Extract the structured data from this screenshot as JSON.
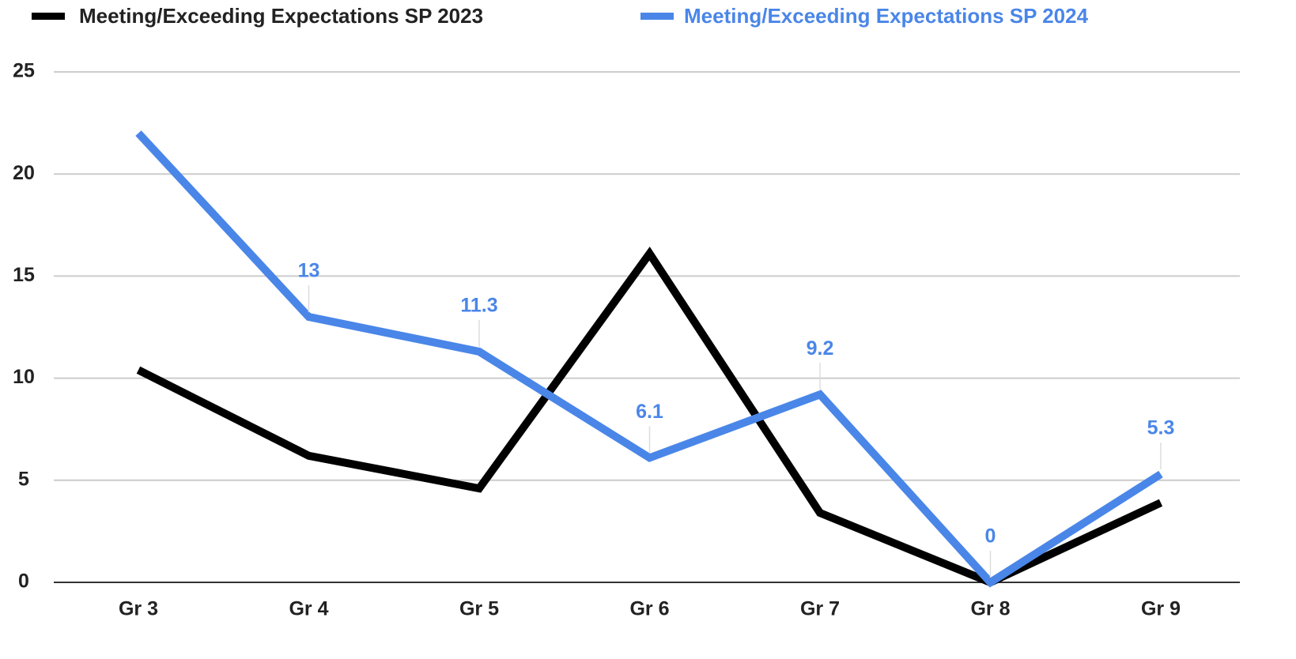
{
  "chart_data": {
    "type": "line",
    "categories": [
      "Gr 3",
      "Gr 4",
      "Gr 5",
      "Gr 6",
      "Gr 7",
      "Gr 8",
      "Gr 9"
    ],
    "series": [
      {
        "name": "Meeting/Exceeding Expectations SP 2023",
        "color": "#000000",
        "values": [
          10.4,
          6.2,
          4.6,
          16.1,
          3.4,
          0,
          3.9
        ]
      },
      {
        "name": "Meeting/Exceeding Expectations SP 2024",
        "color": "#4a86e8",
        "values": [
          22,
          13,
          11.3,
          6.1,
          9.2,
          0,
          5.3
        ],
        "value_labels": [
          null,
          "13",
          "11.3",
          "6.1",
          "9.2",
          "0",
          "5.3"
        ]
      }
    ],
    "ylim": [
      0,
      25
    ],
    "yticks": [
      0,
      5,
      10,
      15,
      20,
      25
    ],
    "grid": true,
    "legend": "top"
  }
}
